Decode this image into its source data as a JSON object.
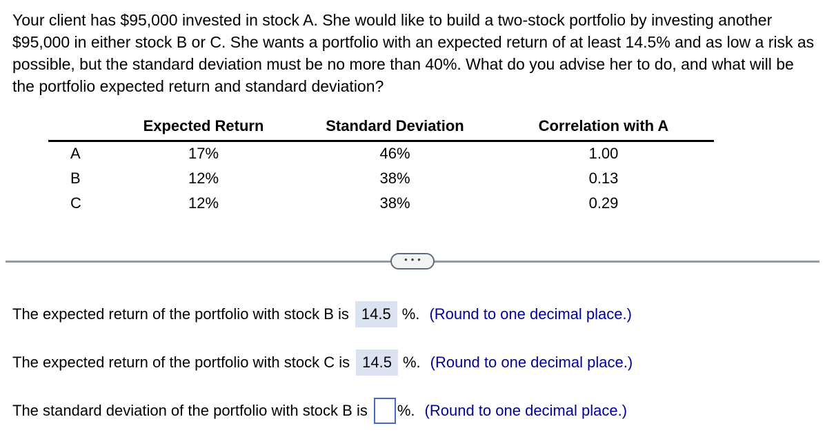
{
  "question": {
    "text": "Your client has $95,000 invested in stock A. She would like to build a two-stock portfolio by investing another $95,000 in either stock B or C. She wants a portfolio with an expected return of at least 14.5% and as low a risk as possible, but the standard deviation must be no more than 40%. What do you advise her to do, and what will be the portfolio expected return and standard deviation?"
  },
  "table": {
    "col_headers": [
      "Expected Return",
      "Standard Deviation",
      "Correlation with A"
    ],
    "rows": [
      {
        "label": "A",
        "expected_return": "17%",
        "std_dev": "46%",
        "correlation": "1.00"
      },
      {
        "label": "B",
        "expected_return": "12%",
        "std_dev": "38%",
        "correlation": "0.13"
      },
      {
        "label": "C",
        "expected_return": "12%",
        "std_dev": "38%",
        "correlation": "0.29"
      }
    ]
  },
  "divider": {
    "dots": "•••"
  },
  "answers": [
    {
      "text": "The expected return of the portfolio with stock B is",
      "value": "14.5",
      "unit": "%.",
      "note": "(Round to one decimal place.)"
    },
    {
      "text": "The expected return of the portfolio with stock C is",
      "value": "14.5",
      "unit": "%.",
      "note": "(Round to one decimal place.)"
    },
    {
      "text": "The standard deviation of the portfolio with stock B is",
      "value": "",
      "unit": "%.",
      "note": "(Round to one decimal place.)"
    }
  ],
  "colors": {
    "note_blue": "#000099",
    "answer_highlight": "#dbe2f0",
    "input_border_blue": "#4668c8",
    "divider_gray": "#949aa5"
  }
}
